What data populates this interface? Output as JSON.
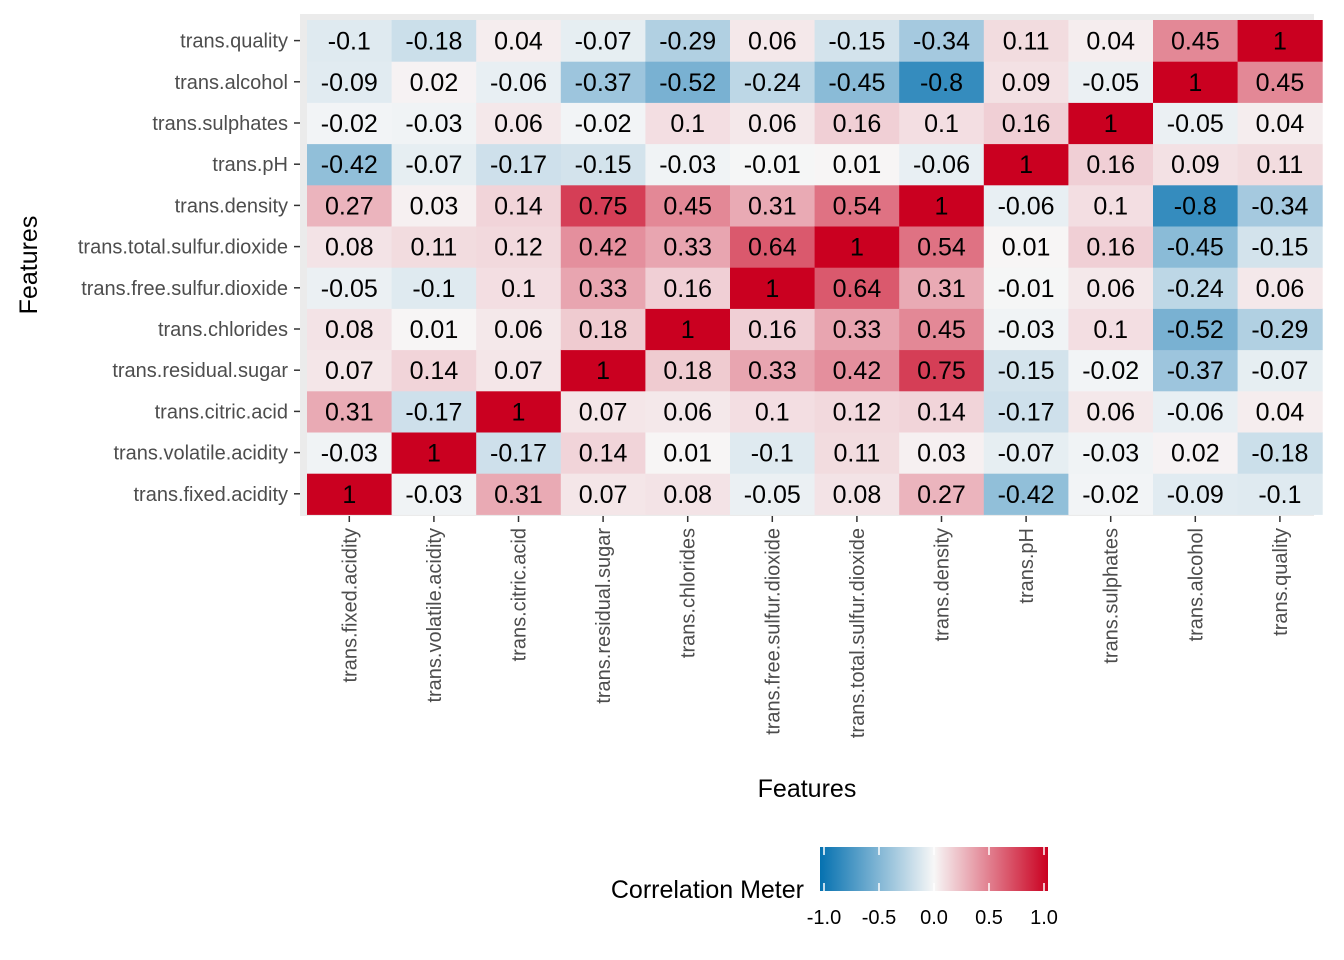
{
  "chart_data": {
    "type": "heatmap",
    "xlabel": "Features",
    "ylabel": "Features",
    "variables": [
      "trans.fixed.acidity",
      "trans.volatile.acidity",
      "trans.citric.acid",
      "trans.residual.sugar",
      "trans.chlorides",
      "trans.free.sulfur.dioxide",
      "trans.total.sulfur.dioxide",
      "trans.density",
      "trans.pH",
      "trans.sulphates",
      "trans.alcohol",
      "trans.quality"
    ],
    "matrix": [
      [
        1,
        -0.03,
        0.31,
        0.07,
        0.08,
        -0.05,
        0.08,
        0.27,
        -0.42,
        -0.02,
        -0.09,
        -0.1
      ],
      [
        -0.03,
        1,
        -0.17,
        0.14,
        0.01,
        -0.1,
        0.11,
        0.03,
        -0.07,
        -0.03,
        0.02,
        -0.18
      ],
      [
        0.31,
        -0.17,
        1,
        0.07,
        0.06,
        0.1,
        0.12,
        0.14,
        -0.17,
        0.06,
        -0.06,
        0.04
      ],
      [
        0.07,
        0.14,
        0.07,
        1,
        0.18,
        0.33,
        0.42,
        0.75,
        -0.15,
        -0.02,
        -0.37,
        -0.07
      ],
      [
        0.08,
        0.01,
        0.06,
        0.18,
        1,
        0.16,
        0.33,
        0.45,
        -0.03,
        0.1,
        -0.52,
        -0.29
      ],
      [
        -0.05,
        -0.1,
        0.1,
        0.33,
        0.16,
        1,
        0.64,
        0.31,
        -0.01,
        0.06,
        -0.24,
        0.06
      ],
      [
        0.08,
        0.11,
        0.12,
        0.42,
        0.33,
        0.64,
        1,
        0.54,
        0.01,
        0.16,
        -0.45,
        -0.15
      ],
      [
        0.27,
        0.03,
        0.14,
        0.75,
        0.45,
        0.31,
        0.54,
        1,
        -0.06,
        0.1,
        -0.8,
        -0.34
      ],
      [
        -0.42,
        -0.07,
        -0.17,
        -0.15,
        -0.03,
        -0.01,
        0.01,
        -0.06,
        1,
        0.16,
        0.09,
        0.11
      ],
      [
        -0.02,
        -0.03,
        0.06,
        -0.02,
        0.1,
        0.06,
        0.16,
        0.1,
        0.16,
        1,
        -0.05,
        0.04
      ],
      [
        -0.09,
        0.02,
        -0.06,
        -0.37,
        -0.52,
        -0.24,
        -0.45,
        -0.8,
        0.09,
        -0.05,
        1,
        0.45
      ],
      [
        -0.1,
        -0.18,
        0.04,
        -0.07,
        -0.29,
        0.06,
        -0.15,
        -0.34,
        0.11,
        0.04,
        0.45,
        1
      ]
    ],
    "color_scale": {
      "low": "#0571b0",
      "mid": "#f7f7f7",
      "high": "#ca0020",
      "limits": [
        -1,
        1
      ]
    },
    "panel_background": "#ebebeb",
    "legend": {
      "title": "Correlation Meter",
      "position": "bottom",
      "ticks": [
        "-1.0",
        "-0.5",
        "0.0",
        "0.5",
        "1.0"
      ]
    }
  }
}
